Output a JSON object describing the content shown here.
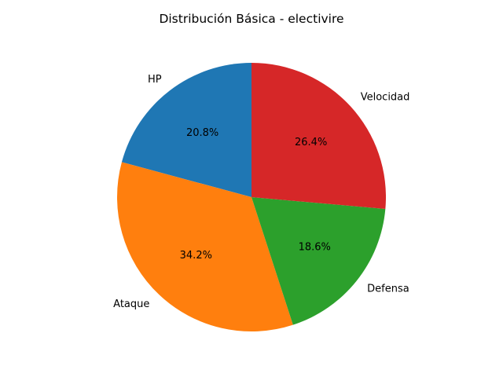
{
  "chart_data": {
    "type": "pie",
    "title": "Distribución Básica - electivire",
    "categories": [
      "HP",
      "Ataque",
      "Defensa",
      "Velocidad"
    ],
    "values": [
      20.8,
      34.2,
      18.6,
      26.4
    ],
    "percent_labels": [
      "20.8%",
      "34.2%",
      "18.6%",
      "26.4%"
    ],
    "colors": [
      "#1f77b4",
      "#ff7f0e",
      "#2ca02c",
      "#d62728"
    ],
    "start_angle_deg": 90,
    "direction": "counterclockwise",
    "legend": "none"
  }
}
